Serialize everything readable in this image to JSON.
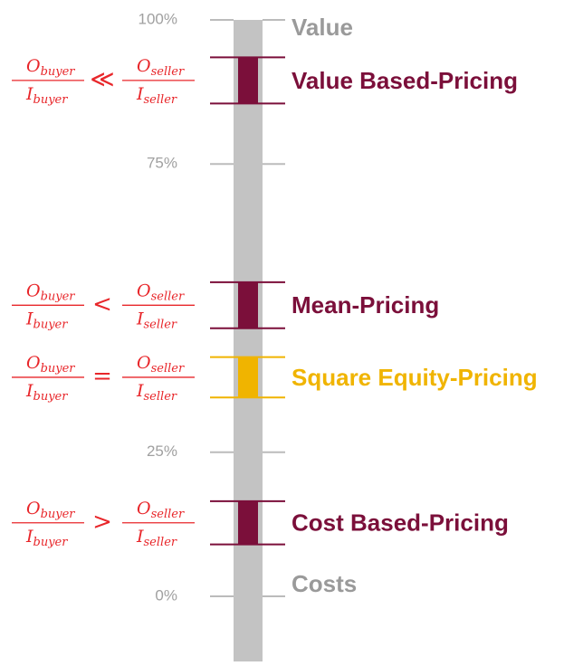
{
  "chart_data": {
    "type": "range",
    "ylim": [
      0,
      100
    ],
    "yticks": [
      {
        "value": 100,
        "label": "100%"
      },
      {
        "value": 75,
        "label": "75%"
      },
      {
        "value": 25,
        "label": "25%"
      },
      {
        "value": 0,
        "label": "0%"
      }
    ],
    "top_label": "Value",
    "bottom_label": "Costs",
    "fraction_left": {
      "num": "O",
      "num_sub": "buyer",
      "den": "I",
      "den_sub": "buyer"
    },
    "fraction_right": {
      "num": "O",
      "num_sub": "seller",
      "den": "I",
      "den_sub": "seller"
    },
    "series": [
      {
        "name": "Value Based-Pricing",
        "color": "#7b0f3a",
        "values": [
          85.5,
          93.5
        ],
        "relation": "≪"
      },
      {
        "name": "Mean-Pricing",
        "color": "#7b0f3a",
        "values": [
          46.5,
          54.5
        ],
        "relation": "<"
      },
      {
        "name": "Square Equity-Pricing",
        "color": "#f0b400",
        "values": [
          34.5,
          41.5
        ],
        "relation": "="
      },
      {
        "name": "Cost Based-Pricing",
        "color": "#7b0f3a",
        "values": [
          9,
          16.5
        ],
        "relation": ">"
      }
    ]
  }
}
